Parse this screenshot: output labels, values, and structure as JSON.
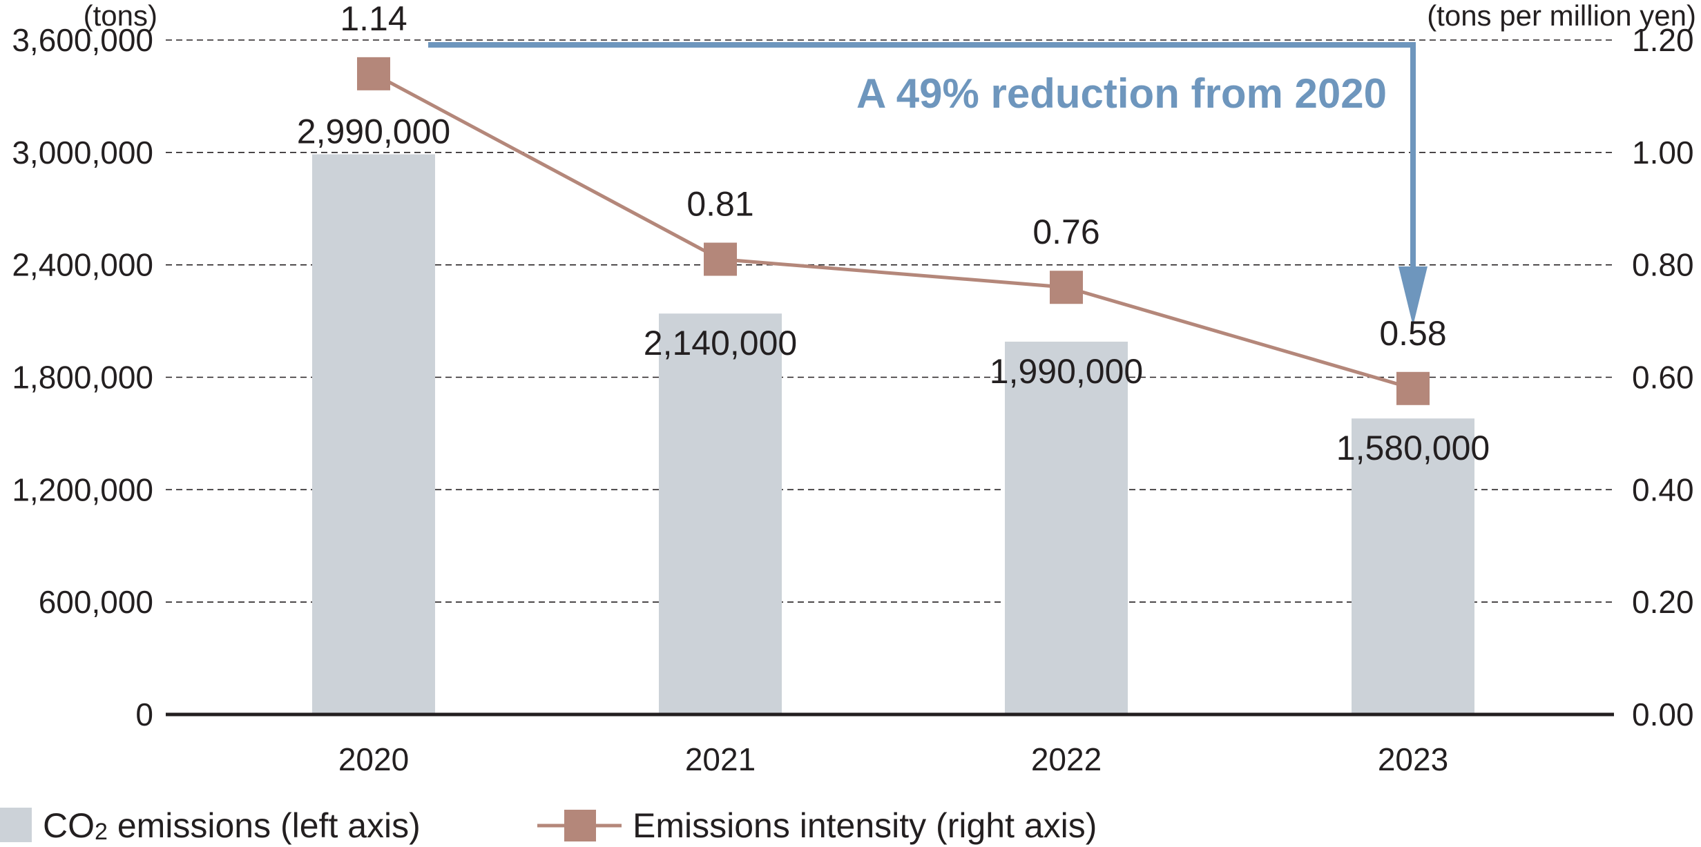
{
  "chart_data": {
    "type": "bar",
    "categories": [
      "2020",
      "2021",
      "2022",
      "2023"
    ],
    "series": [
      {
        "name": "CO2 emissions (left axis)",
        "type": "bar",
        "axis": "left",
        "values": [
          2990000,
          2140000,
          1990000,
          1580000
        ],
        "labels": [
          "2,990,000",
          "2,140,000",
          "1,990,000",
          "1,580,000"
        ],
        "color": "#ccd2d8"
      },
      {
        "name": "Emissions intensity (right axis)",
        "type": "line",
        "axis": "right",
        "values": [
          1.14,
          0.81,
          0.76,
          0.58
        ],
        "labels": [
          "1.14",
          "0.81",
          "0.76",
          "0.58"
        ],
        "color": "#b4877a"
      }
    ],
    "y_left": {
      "unit": "(tons)",
      "range": [
        0,
        3600000
      ],
      "ticks": [
        0,
        600000,
        1200000,
        1800000,
        2400000,
        3000000,
        3600000
      ],
      "tick_labels": [
        "0",
        "600,000",
        "1,200,000",
        "1,800,000",
        "2,400,000",
        "3,000,000",
        "3,600,000"
      ]
    },
    "y_right": {
      "unit": "(tons per million yen)",
      "range": [
        0,
        1.2
      ],
      "ticks": [
        0,
        0.2,
        0.4,
        0.6,
        0.8,
        1.0,
        1.2
      ],
      "tick_labels": [
        "0.00",
        "0.20",
        "0.40",
        "0.60",
        "0.80",
        "1.00",
        "1.20"
      ]
    },
    "grid": "horizontal-dashed",
    "annotation": {
      "text": "A 49% reduction from 2020",
      "from": "2020",
      "to": "2023",
      "color": "#6e96bd"
    },
    "legend": {
      "position": "bottom-left",
      "bar_label_main": "CO",
      "bar_label_sub": "2",
      "bar_label_rest": " emissions (left axis)",
      "line_label": "Emissions intensity (right axis)"
    }
  }
}
